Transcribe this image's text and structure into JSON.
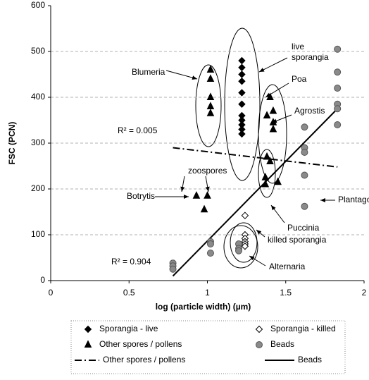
{
  "chart_data": {
    "type": "scatter",
    "x_label": "log (particle width) (µm)",
    "y_label": "FSC (PCN)",
    "xlim": [
      0,
      2
    ],
    "xticks": [
      0,
      0.5,
      1,
      1.5,
      2
    ],
    "ylim": [
      0,
      600
    ],
    "yticks": [
      0,
      100,
      200,
      300,
      400,
      500,
      600
    ],
    "grid": true,
    "series": [
      {
        "name": "Sporangia - live",
        "marker": "diamond",
        "color": "#000000",
        "fill": "#000000",
        "x": [
          1.22,
          1.22,
          1.22,
          1.22,
          1.22,
          1.22,
          1.22,
          1.22,
          1.22,
          1.22,
          1.22
        ],
        "values": [
          480,
          465,
          450,
          435,
          410,
          385,
          360,
          350,
          340,
          330,
          320
        ]
      },
      {
        "name": "Sporangia - killed",
        "marker": "diamond",
        "color": "#000000",
        "fill": "#ffffff",
        "x": [
          1.24,
          1.24,
          1.24,
          1.24,
          1.24,
          1.24
        ],
        "values": [
          142,
          100,
          92,
          85,
          80,
          75
        ]
      },
      {
        "name": "Other spores / pollens",
        "marker": "triangle",
        "color": "#000000",
        "fill": "#000000",
        "x": [
          1.02,
          1.02,
          1.02,
          1.02,
          1.02,
          1.4,
          1.38,
          1.42,
          1.42,
          1.42,
          1.45,
          1.38,
          1.4,
          1.37,
          1.37,
          0.93,
          0.98,
          1.0
        ],
        "values": [
          460,
          440,
          400,
          380,
          365,
          400,
          360,
          370,
          345,
          330,
          215,
          270,
          260,
          225,
          210,
          185,
          155,
          185
        ]
      },
      {
        "name": "Beads",
        "marker": "circle",
        "color": "#555555",
        "fill": "#8a8a8a",
        "x": [
          0.78,
          0.78,
          0.78,
          1.02,
          1.02,
          1.02,
          1.2,
          1.2,
          1.2,
          1.62,
          1.62,
          1.62,
          1.62,
          1.62,
          1.83,
          1.83,
          1.83,
          1.83,
          1.83,
          1.83
        ],
        "values": [
          38,
          32,
          25,
          85,
          80,
          60,
          80,
          70,
          65,
          335,
          290,
          280,
          230,
          162,
          505,
          455,
          420,
          385,
          375,
          340
        ]
      }
    ],
    "lines": [
      {
        "name": "Other spores / pollens",
        "style": "dashdot",
        "color": "#000000",
        "x": [
          0.78,
          1.83
        ],
        "values": [
          290,
          248
        ]
      },
      {
        "name": "Beads",
        "style": "solid",
        "color": "#000000",
        "x": [
          0.78,
          1.83
        ],
        "values": [
          10,
          375
        ]
      }
    ],
    "annotations": [
      "live",
      "sporangia",
      "Blumeria",
      "Poa",
      "Agrostis",
      "R² = 0.005",
      "zoospores",
      "Botrytis",
      "Plantago",
      "Puccinia",
      "killed sporangia",
      "Alternaria",
      "R² = 0.904"
    ]
  }
}
